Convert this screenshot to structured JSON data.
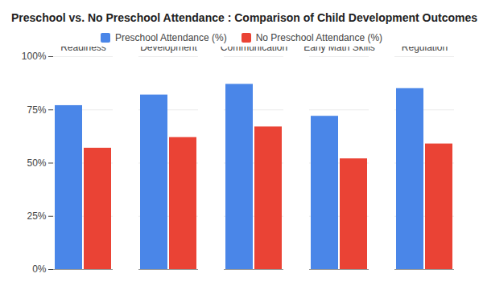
{
  "chart_data": {
    "type": "bar",
    "title": "Preschool vs. No Preschool Attendance : Comparison of Child Development Outcomes",
    "categories": [
      "Academic Readiness",
      "Social Skills Development",
      "Language and Communication",
      "Early Math Skills",
      "Emotional Regulation"
    ],
    "series": [
      {
        "name": "Preschool Attendance (%)",
        "color": "#4a86e8",
        "values": [
          77,
          82,
          87,
          72,
          85
        ]
      },
      {
        "name": "No Preschool Attendance (%)",
        "color": "#ea4335",
        "values": [
          57,
          62,
          67,
          52,
          59
        ]
      }
    ],
    "ylim": [
      0,
      100
    ],
    "yticks": [
      {
        "value": 0,
        "label": "0%"
      },
      {
        "value": 25,
        "label": "25%"
      },
      {
        "value": 50,
        "label": "50%"
      },
      {
        "value": 75,
        "label": "75%"
      },
      {
        "value": 100,
        "label": "100%"
      }
    ],
    "grid": true,
    "legend": "top"
  }
}
